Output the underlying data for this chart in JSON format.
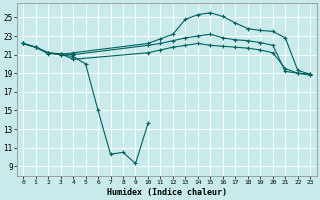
{
  "title": "",
  "xlabel": "Humidex (Indice chaleur)",
  "background_color": "#c8eaea",
  "grid_color": "#ffffff",
  "line_color": "#006060",
  "x_ticks": [
    0,
    1,
    2,
    3,
    4,
    5,
    6,
    7,
    8,
    9,
    10,
    11,
    12,
    13,
    14,
    15,
    16,
    17,
    18,
    19,
    20,
    21,
    22,
    23
  ],
  "y_ticks": [
    9,
    11,
    13,
    15,
    17,
    19,
    21,
    23,
    25
  ],
  "ylim": [
    8.0,
    26.5
  ],
  "xlim": [
    -0.5,
    23.5
  ],
  "line1_x": [
    0,
    1,
    2,
    3,
    4,
    10,
    11,
    12,
    13,
    14,
    15,
    16,
    17,
    18,
    19,
    20,
    21,
    22,
    23
  ],
  "line1_y": [
    22.2,
    21.8,
    21.1,
    21.1,
    21.0,
    22.0,
    22.2,
    22.5,
    22.8,
    23.0,
    23.2,
    22.8,
    22.6,
    22.5,
    22.3,
    22.0,
    19.2,
    19.0,
    18.9
  ],
  "line2_x": [
    0,
    1,
    2,
    3,
    4,
    10,
    11,
    12,
    13,
    14,
    15,
    16,
    17,
    18,
    19,
    20,
    21,
    22,
    23
  ],
  "line2_y": [
    22.2,
    21.8,
    21.2,
    21.0,
    21.2,
    22.2,
    22.7,
    23.2,
    24.8,
    25.3,
    25.5,
    25.1,
    24.4,
    23.8,
    23.6,
    23.5,
    22.8,
    19.3,
    18.9
  ],
  "line3_x": [
    0,
    1,
    2,
    3,
    4,
    5,
    6,
    7,
    8,
    9,
    10
  ],
  "line3_y": [
    22.2,
    21.8,
    21.2,
    21.0,
    20.8,
    20.0,
    15.0,
    10.3,
    10.5,
    9.3,
    13.6
  ],
  "line4_x": [
    0,
    1,
    2,
    3,
    4,
    10,
    11,
    12,
    13,
    14,
    15,
    16,
    17,
    18,
    19,
    20,
    21,
    22,
    23
  ],
  "line4_y": [
    22.2,
    21.8,
    21.2,
    21.1,
    20.5,
    21.2,
    21.5,
    21.8,
    22.0,
    22.2,
    22.0,
    21.9,
    21.8,
    21.7,
    21.5,
    21.2,
    19.5,
    19.0,
    18.8
  ]
}
